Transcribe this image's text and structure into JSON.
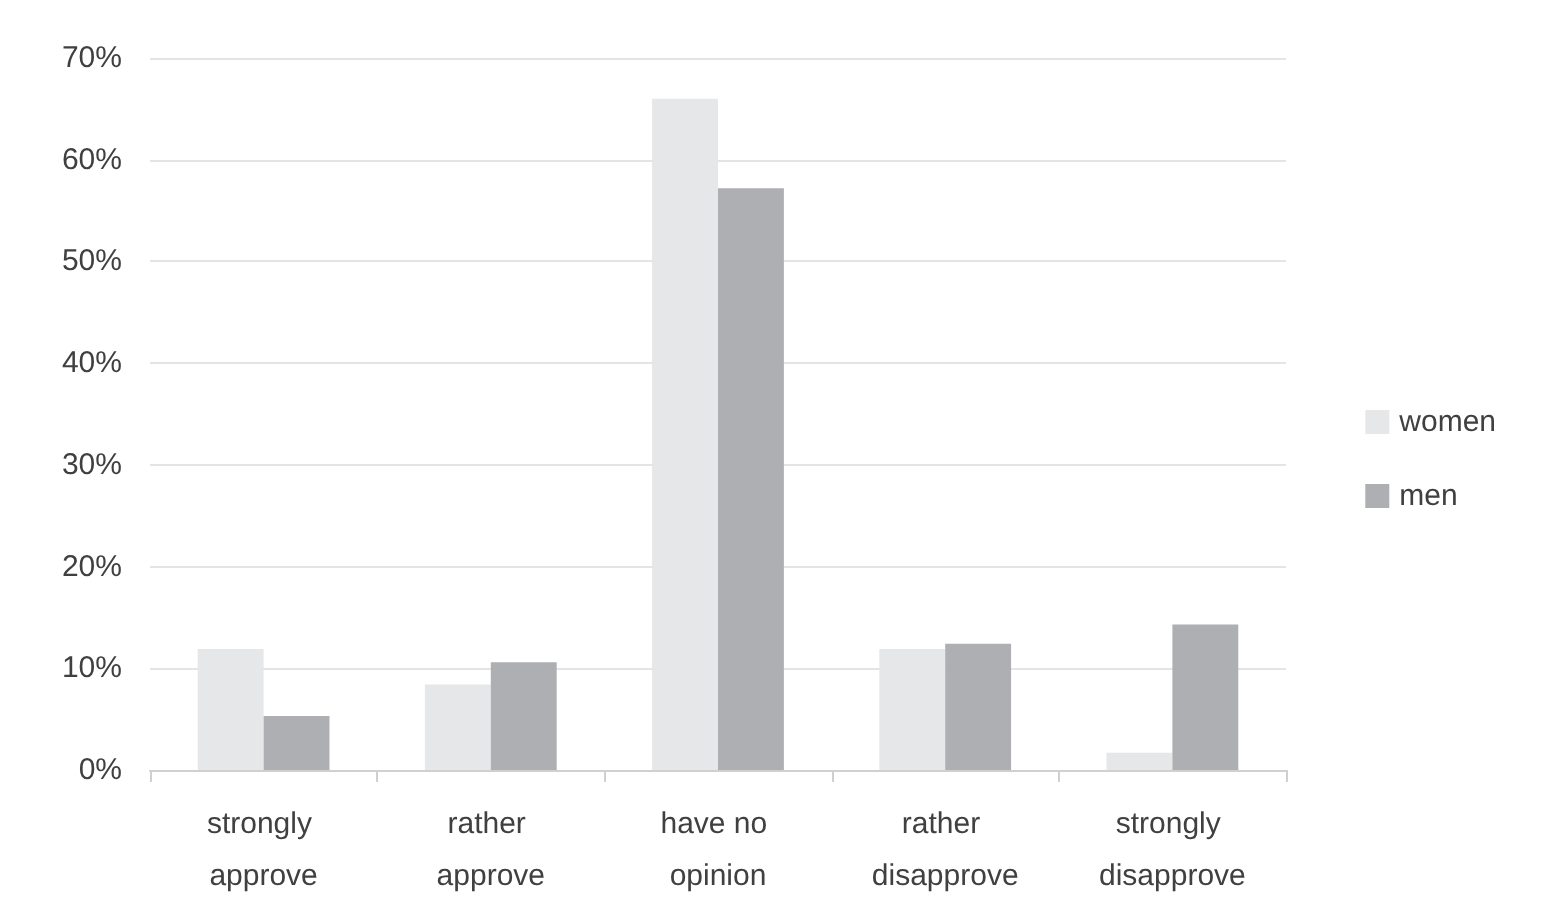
{
  "chart_data": {
    "type": "bar",
    "categories": [
      "strongly approve",
      "rather approve",
      "have no opinion",
      "rather disapprove",
      "strongly disapprove"
    ],
    "series": [
      {
        "name": "women",
        "color": "#e6e7e8",
        "values": [
          11.9,
          8.4,
          66.0,
          11.9,
          1.7
        ]
      },
      {
        "name": "men",
        "color": "#aeafb2",
        "values": [
          5.3,
          10.6,
          57.2,
          12.4,
          14.3
        ]
      }
    ],
    "ylim": [
      0,
      70
    ],
    "yticks": [
      {
        "value": 0,
        "label": "0%"
      },
      {
        "value": 10,
        "label": "10%"
      },
      {
        "value": 20,
        "label": "20%"
      },
      {
        "value": 30,
        "label": "30%"
      },
      {
        "value": 40,
        "label": "40%"
      },
      {
        "value": 50,
        "label": "50%"
      },
      {
        "value": 60,
        "label": "60%"
      },
      {
        "value": 70,
        "label": "70%"
      }
    ],
    "grid": "y",
    "legend": "right"
  }
}
